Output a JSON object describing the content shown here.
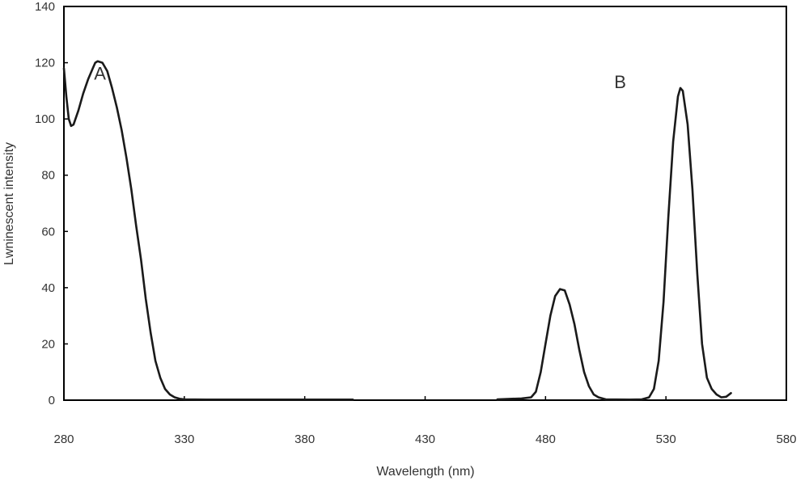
{
  "chart_data": {
    "type": "line",
    "title": "",
    "xlabel": "Wavelength (nm)",
    "ylabel": "Lwninescent intensity",
    "xlim": [
      280,
      580
    ],
    "ylim": [
      0,
      140
    ],
    "x_ticks": [
      280,
      330,
      380,
      430,
      480,
      530,
      580
    ],
    "y_ticks": [
      0,
      20,
      40,
      60,
      80,
      100,
      120,
      140
    ],
    "grid": false,
    "legend": "none",
    "line_color": "#1a1a1a",
    "annotations": [
      {
        "text": "A",
        "x": 295,
        "y": 114
      },
      {
        "text": "B",
        "x": 511,
        "y": 111
      }
    ],
    "series": [
      {
        "values": [
          [
            280,
            118
          ],
          [
            281,
            108
          ],
          [
            282,
            100
          ],
          [
            283,
            97.5
          ],
          [
            284,
            98
          ],
          [
            286,
            103
          ],
          [
            288,
            109
          ],
          [
            290,
            114
          ],
          [
            292,
            118
          ],
          [
            293,
            120
          ],
          [
            294,
            120.5
          ],
          [
            296,
            120
          ],
          [
            298,
            117
          ],
          [
            300,
            111
          ],
          [
            302,
            104
          ],
          [
            304,
            96
          ],
          [
            306,
            86
          ],
          [
            308,
            75
          ],
          [
            310,
            62
          ],
          [
            312,
            50
          ],
          [
            314,
            36
          ],
          [
            316,
            24
          ],
          [
            318,
            14
          ],
          [
            320,
            8
          ],
          [
            322,
            4
          ],
          [
            324,
            2
          ],
          [
            326,
            1
          ],
          [
            328,
            0.5
          ],
          [
            330,
            0.3
          ],
          [
            340,
            0.2
          ],
          [
            400,
            0.2
          ]
        ]
      },
      {
        "values": [
          [
            460,
            0.3
          ],
          [
            470,
            0.6
          ],
          [
            474,
            1
          ],
          [
            476,
            3
          ],
          [
            478,
            10
          ],
          [
            480,
            20
          ],
          [
            482,
            30
          ],
          [
            484,
            37
          ],
          [
            486,
            39.5
          ],
          [
            488,
            39
          ],
          [
            490,
            34
          ],
          [
            492,
            27
          ],
          [
            494,
            18
          ],
          [
            496,
            10
          ],
          [
            498,
            5
          ],
          [
            500,
            2
          ],
          [
            502,
            1
          ],
          [
            505,
            0.3
          ],
          [
            515,
            0.2
          ],
          [
            520,
            0.3
          ],
          [
            523,
            1
          ],
          [
            525,
            4
          ],
          [
            527,
            14
          ],
          [
            529,
            35
          ],
          [
            531,
            65
          ],
          [
            533,
            92
          ],
          [
            535,
            108
          ],
          [
            536,
            111
          ],
          [
            537,
            110
          ],
          [
            539,
            98
          ],
          [
            541,
            75
          ],
          [
            543,
            45
          ],
          [
            545,
            20
          ],
          [
            547,
            8
          ],
          [
            549,
            4
          ],
          [
            551,
            2
          ],
          [
            553,
            1
          ],
          [
            555,
            1.2
          ],
          [
            557,
            2.5
          ]
        ]
      }
    ]
  }
}
